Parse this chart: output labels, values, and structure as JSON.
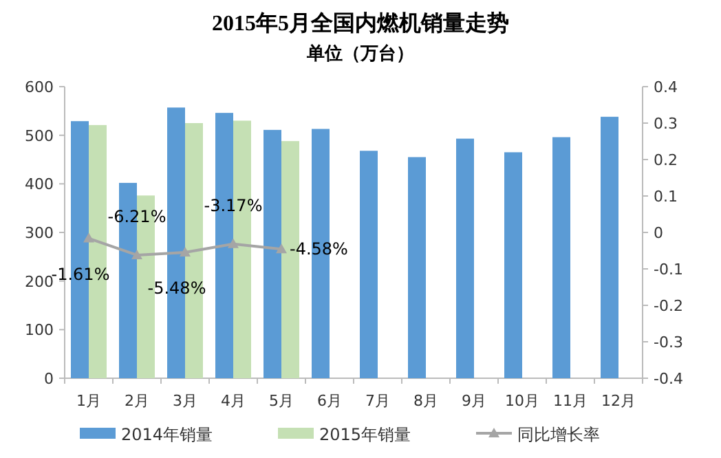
{
  "chart_data": {
    "type": "bar",
    "title": "2015年5月全国内燃机销量走势",
    "subtitle": "单位（万台）",
    "categories": [
      "1月",
      "2月",
      "3月",
      "4月",
      "5月",
      "6月",
      "7月",
      "8月",
      "9月",
      "10月",
      "11月",
      "12月"
    ],
    "series": [
      {
        "name": "2014年销量",
        "color": "#5b9bd5",
        "values": [
          529,
          402,
          557,
          546,
          511,
          513,
          468,
          455,
          493,
          465,
          496,
          538
        ]
      },
      {
        "name": "2015年销量",
        "color": "#c5e0b4",
        "values": [
          521,
          376,
          525,
          530,
          488,
          null,
          null,
          null,
          null,
          null,
          null,
          null
        ]
      },
      {
        "name": "同比增长率",
        "type": "line",
        "axis": "y2",
        "color": "#a5a5a5",
        "marker": "triangle",
        "values": [
          -0.0161,
          -0.0621,
          -0.0548,
          -0.0317,
          -0.0458,
          null,
          null,
          null,
          null,
          null,
          null,
          null
        ],
        "value_labels": [
          "-1.61%",
          "-6.21%",
          "-5.48%",
          "-3.17%",
          "-4.58%",
          null,
          null,
          null,
          null,
          null,
          null,
          null
        ]
      }
    ],
    "ylim": [
      0,
      600
    ],
    "yticks": [
      0,
      100,
      200,
      300,
      400,
      500,
      600
    ],
    "y2lim": [
      -0.4,
      0.4
    ],
    "y2ticks": [
      -0.4,
      -0.3,
      -0.2,
      -0.1,
      0,
      0.1,
      0.2,
      0.3,
      0.4
    ],
    "legend": "bottom"
  }
}
